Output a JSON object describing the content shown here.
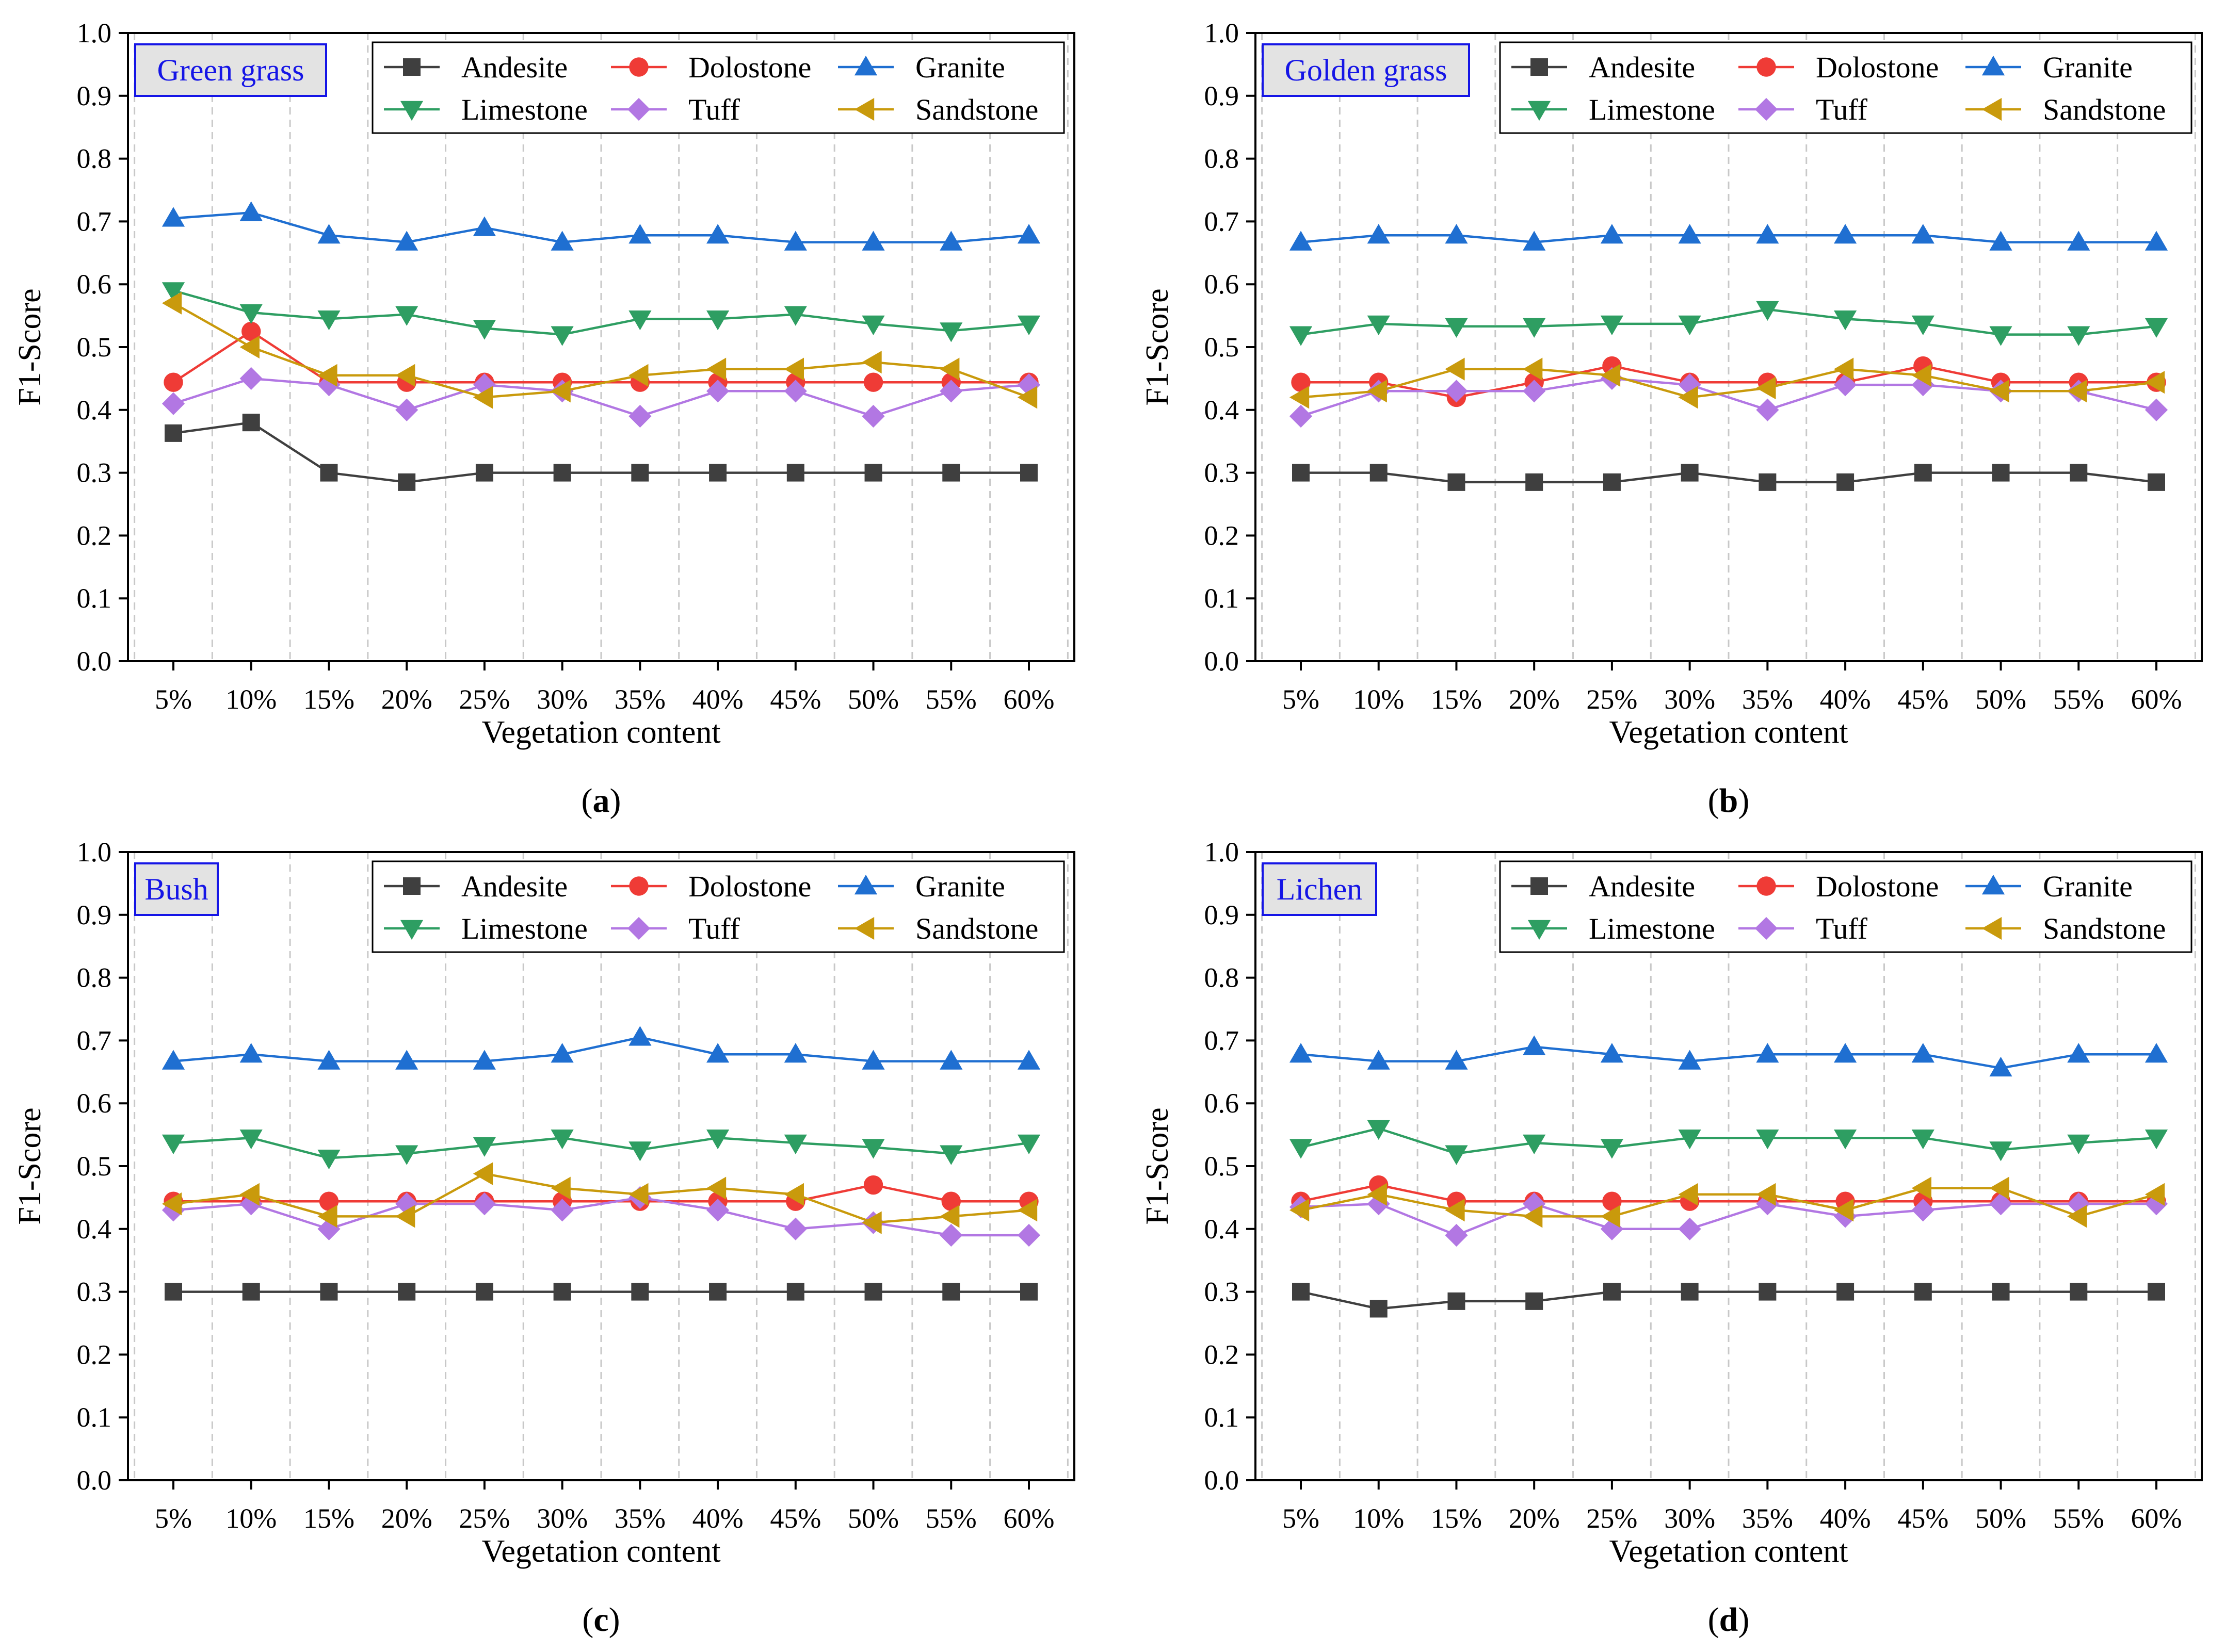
{
  "figure": {
    "panel_caption_labels": [
      "a",
      "b",
      "c",
      "d"
    ]
  },
  "styles": {
    "colors": {
      "Andesite": "#3f3f3f",
      "Dolostone": "#ef3b36",
      "Granite": "#1f6fd1",
      "Limestone": "#2e9e62",
      "Tuff": "#b277e3",
      "Sandstone": "#c99a0c",
      "panel_label_text": "#1515e6",
      "panel_label_border": "#1515e6",
      "panel_label_fill": "#e3e3e3",
      "grid": "#c8c8c8"
    },
    "markers": {
      "Andesite": "square",
      "Dolostone": "circle",
      "Granite": "triangle-up",
      "Limestone": "triangle-down",
      "Tuff": "diamond",
      "Sandstone": "triangle-left"
    }
  },
  "chart_data": [
    {
      "type": "line",
      "panel": "a",
      "title": "Green grass",
      "xlabel": "Vegetation content",
      "ylabel": "F1-Score",
      "ylim": [
        0,
        1.0
      ],
      "yticks": [
        "0.0",
        "0.1",
        "0.2",
        "0.3",
        "0.4",
        "0.5",
        "0.6",
        "0.7",
        "0.8",
        "0.9",
        "1.0"
      ],
      "categories": [
        "5%",
        "10%",
        "15%",
        "20%",
        "25%",
        "30%",
        "35%",
        "40%",
        "45%",
        "50%",
        "55%",
        "60%"
      ],
      "legend_position": "top-right",
      "series": [
        {
          "name": "Andesite",
          "values": [
            0.363,
            0.38,
            0.3,
            0.285,
            0.3,
            0.3,
            0.3,
            0.3,
            0.3,
            0.3,
            0.3,
            0.3
          ]
        },
        {
          "name": "Dolostone",
          "values": [
            0.444,
            0.525,
            0.444,
            0.444,
            0.444,
            0.444,
            0.444,
            0.444,
            0.444,
            0.444,
            0.444,
            0.444
          ]
        },
        {
          "name": "Granite",
          "values": [
            0.705,
            0.714,
            0.678,
            0.667,
            0.69,
            0.667,
            0.678,
            0.678,
            0.667,
            0.667,
            0.667,
            0.678
          ]
        },
        {
          "name": "Limestone",
          "values": [
            0.59,
            0.555,
            0.545,
            0.552,
            0.53,
            0.52,
            0.545,
            0.545,
            0.552,
            0.537,
            0.526,
            0.537
          ]
        },
        {
          "name": "Tuff",
          "values": [
            0.41,
            0.45,
            0.44,
            0.4,
            0.44,
            0.43,
            0.39,
            0.43,
            0.43,
            0.39,
            0.43,
            0.44
          ]
        },
        {
          "name": "Sandstone",
          "values": [
            0.57,
            0.5,
            0.455,
            0.455,
            0.42,
            0.43,
            0.455,
            0.465,
            0.465,
            0.476,
            0.465,
            0.42
          ]
        }
      ]
    },
    {
      "type": "line",
      "panel": "b",
      "title": "Golden grass",
      "xlabel": "Vegetation content",
      "ylabel": "F1-Score",
      "ylim": [
        0,
        1.0
      ],
      "yticks": [
        "0.0",
        "0.1",
        "0.2",
        "0.3",
        "0.4",
        "0.5",
        "0.6",
        "0.7",
        "0.8",
        "0.9",
        "1.0"
      ],
      "categories": [
        "5%",
        "10%",
        "15%",
        "20%",
        "25%",
        "30%",
        "35%",
        "40%",
        "45%",
        "50%",
        "55%",
        "60%"
      ],
      "legend_position": "top-right",
      "series": [
        {
          "name": "Andesite",
          "values": [
            0.3,
            0.3,
            0.285,
            0.285,
            0.285,
            0.3,
            0.285,
            0.285,
            0.3,
            0.3,
            0.3,
            0.285
          ]
        },
        {
          "name": "Dolostone",
          "values": [
            0.444,
            0.444,
            0.42,
            0.444,
            0.47,
            0.444,
            0.444,
            0.444,
            0.47,
            0.444,
            0.444,
            0.444
          ]
        },
        {
          "name": "Granite",
          "values": [
            0.667,
            0.678,
            0.678,
            0.667,
            0.678,
            0.678,
            0.678,
            0.678,
            0.678,
            0.667,
            0.667,
            0.667
          ]
        },
        {
          "name": "Limestone",
          "values": [
            0.52,
            0.537,
            0.533,
            0.533,
            0.537,
            0.537,
            0.56,
            0.545,
            0.537,
            0.52,
            0.52,
            0.533
          ]
        },
        {
          "name": "Tuff",
          "values": [
            0.39,
            0.43,
            0.43,
            0.43,
            0.45,
            0.44,
            0.4,
            0.44,
            0.44,
            0.43,
            0.43,
            0.4
          ]
        },
        {
          "name": "Sandstone",
          "values": [
            0.42,
            0.43,
            0.465,
            0.465,
            0.455,
            0.42,
            0.435,
            0.465,
            0.455,
            0.43,
            0.43,
            0.444
          ]
        }
      ]
    },
    {
      "type": "line",
      "panel": "c",
      "title": "Bush",
      "xlabel": "Vegetation content",
      "ylabel": "F1-Score",
      "ylim": [
        0,
        1.0
      ],
      "yticks": [
        "0.0",
        "0.1",
        "0.2",
        "0.3",
        "0.4",
        "0.5",
        "0.6",
        "0.7",
        "0.8",
        "0.9",
        "1.0"
      ],
      "categories": [
        "5%",
        "10%",
        "15%",
        "20%",
        "25%",
        "30%",
        "35%",
        "40%",
        "45%",
        "50%",
        "55%",
        "60%"
      ],
      "legend_position": "top-right",
      "series": [
        {
          "name": "Andesite",
          "values": [
            0.3,
            0.3,
            0.3,
            0.3,
            0.3,
            0.3,
            0.3,
            0.3,
            0.3,
            0.3,
            0.3,
            0.3
          ]
        },
        {
          "name": "Dolostone",
          "values": [
            0.444,
            0.444,
            0.444,
            0.444,
            0.444,
            0.444,
            0.444,
            0.444,
            0.444,
            0.47,
            0.444,
            0.444
          ]
        },
        {
          "name": "Granite",
          "values": [
            0.667,
            0.678,
            0.667,
            0.667,
            0.667,
            0.678,
            0.705,
            0.678,
            0.678,
            0.667,
            0.667,
            0.667
          ]
        },
        {
          "name": "Limestone",
          "values": [
            0.537,
            0.545,
            0.513,
            0.52,
            0.533,
            0.545,
            0.526,
            0.545,
            0.537,
            0.53,
            0.52,
            0.537
          ]
        },
        {
          "name": "Tuff",
          "values": [
            0.43,
            0.44,
            0.4,
            0.44,
            0.44,
            0.43,
            0.45,
            0.43,
            0.4,
            0.41,
            0.39,
            0.39
          ]
        },
        {
          "name": "Sandstone",
          "values": [
            0.44,
            0.455,
            0.42,
            0.42,
            0.488,
            0.465,
            0.455,
            0.465,
            0.455,
            0.41,
            0.42,
            0.43
          ]
        }
      ]
    },
    {
      "type": "line",
      "panel": "d",
      "title": "Lichen",
      "xlabel": "Vegetation content",
      "ylabel": "F1-Score",
      "ylim": [
        0,
        1.0
      ],
      "yticks": [
        "0.0",
        "0.1",
        "0.2",
        "0.3",
        "0.4",
        "0.5",
        "0.6",
        "0.7",
        "0.8",
        "0.9",
        "1.0"
      ],
      "categories": [
        "5%",
        "10%",
        "15%",
        "20%",
        "25%",
        "30%",
        "35%",
        "40%",
        "45%",
        "50%",
        "55%",
        "60%"
      ],
      "legend_position": "top-right",
      "series": [
        {
          "name": "Andesite",
          "values": [
            0.3,
            0.273,
            0.285,
            0.285,
            0.3,
            0.3,
            0.3,
            0.3,
            0.3,
            0.3,
            0.3,
            0.3
          ]
        },
        {
          "name": "Dolostone",
          "values": [
            0.444,
            0.47,
            0.444,
            0.444,
            0.444,
            0.444,
            0.444,
            0.444,
            0.444,
            0.444,
            0.444,
            0.444
          ]
        },
        {
          "name": "Granite",
          "values": [
            0.678,
            0.667,
            0.667,
            0.69,
            0.678,
            0.667,
            0.678,
            0.678,
            0.678,
            0.656,
            0.678,
            0.678
          ]
        },
        {
          "name": "Limestone",
          "values": [
            0.53,
            0.56,
            0.52,
            0.537,
            0.53,
            0.545,
            0.545,
            0.545,
            0.545,
            0.526,
            0.537,
            0.545
          ]
        },
        {
          "name": "Tuff",
          "values": [
            0.435,
            0.44,
            0.39,
            0.44,
            0.4,
            0.4,
            0.44,
            0.42,
            0.43,
            0.44,
            0.44,
            0.44
          ]
        },
        {
          "name": "Sandstone",
          "values": [
            0.43,
            0.455,
            0.43,
            0.42,
            0.42,
            0.455,
            0.455,
            0.43,
            0.465,
            0.465,
            0.42,
            0.455
          ]
        }
      ]
    }
  ]
}
